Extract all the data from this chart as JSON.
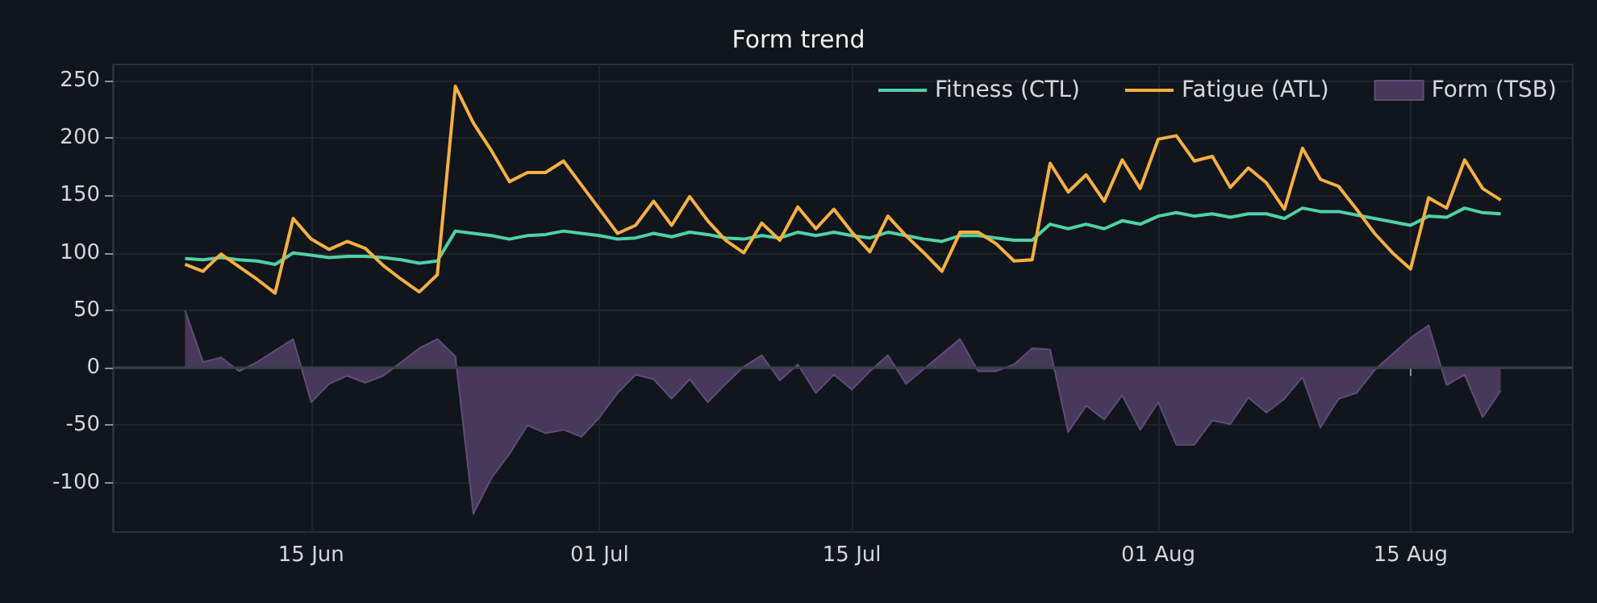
{
  "chart_data": {
    "type": "line",
    "title": "Form trend",
    "x": [
      "--06-08",
      "--06-09",
      "--06-10",
      "--06-11",
      "--06-12",
      "--06-13",
      "--06-14",
      "--06-15",
      "--06-16",
      "--06-17",
      "--06-18",
      "--06-19",
      "--06-20",
      "--06-21",
      "--06-22",
      "--06-23",
      "--06-24",
      "--06-25",
      "--06-26",
      "--06-27",
      "--06-28",
      "--06-29",
      "--06-30",
      "--07-01",
      "--07-02",
      "--07-03",
      "--07-04",
      "--07-05",
      "--07-06",
      "--07-07",
      "--07-08",
      "--07-09",
      "--07-10",
      "--07-11",
      "--07-12",
      "--07-13",
      "--07-14",
      "--07-15",
      "--07-16",
      "--07-17",
      "--07-18",
      "--07-19",
      "--07-20",
      "--07-21",
      "--07-22",
      "--07-23",
      "--07-24",
      "--07-25",
      "--07-26",
      "--07-27",
      "--07-28",
      "--07-29",
      "--07-30",
      "--07-31",
      "--08-01",
      "--08-02",
      "--08-03",
      "--08-04",
      "--08-05",
      "--08-06",
      "--08-07",
      "--08-08",
      "--08-09",
      "--08-10",
      "--08-11",
      "--08-12",
      "--08-13",
      "--08-14",
      "--08-15",
      "--08-16",
      "--08-17",
      "--08-18",
      "--08-19",
      "--08-20"
    ],
    "series": [
      {
        "name": "Fitness (CTL)",
        "color": "#4fd1a5",
        "values": [
          95,
          94,
          96,
          94,
          93,
          90,
          100,
          98,
          96,
          97,
          97,
          96,
          94,
          91,
          93,
          119,
          117,
          115,
          112,
          115,
          116,
          119,
          117,
          115,
          112,
          113,
          117,
          114,
          118,
          116,
          113,
          112,
          115,
          113,
          118,
          115,
          118,
          115,
          113,
          118,
          115,
          112,
          110,
          115,
          115,
          113,
          111,
          111,
          125,
          121,
          125,
          121,
          128,
          125,
          132,
          135,
          132,
          134,
          131,
          134,
          134,
          130,
          139,
          136,
          136,
          133,
          130,
          127,
          124,
          132,
          131,
          139,
          135,
          134
        ]
      },
      {
        "name": "Fatigue (ATL)",
        "color": "#f5b041",
        "values": [
          90,
          84,
          99,
          88,
          77,
          65,
          130,
          112,
          103,
          110,
          104,
          89,
          77,
          66,
          81,
          245,
          213,
          189,
          162,
          170,
          170,
          180,
          159,
          138,
          117,
          124,
          145,
          124,
          149,
          128,
          111,
          100,
          126,
          111,
          140,
          121,
          138,
          118,
          101,
          132,
          115,
          100,
          84,
          118,
          118,
          108,
          93,
          94,
          178,
          153,
          168,
          145,
          181,
          156,
          199,
          202,
          180,
          184,
          157,
          174,
          161,
          138,
          191,
          164,
          158,
          138,
          117,
          100,
          86,
          148,
          139,
          181,
          156,
          146
        ]
      },
      {
        "name": "Form (TSB)",
        "type": "area",
        "color": "#46395a",
        "values": [
          50,
          5,
          9,
          -3,
          5,
          15,
          25,
          -30,
          -14,
          -7,
          -13,
          -7,
          5,
          17,
          25,
          10,
          -127,
          -96,
          -75,
          -50,
          -57,
          -54,
          -60,
          -43,
          -22,
          -6,
          -10,
          -27,
          -10,
          -30,
          -14,
          1,
          11,
          -11,
          3,
          -22,
          -6,
          -19,
          -3,
          11,
          -14,
          -1,
          12,
          25,
          -3,
          -3,
          3,
          17,
          16,
          -56,
          -33,
          -45,
          -24,
          -54,
          -30,
          -67,
          -67,
          -46,
          -49,
          -26,
          -39,
          -27,
          -8,
          -52,
          -27,
          -22,
          -2,
          12,
          26,
          37,
          -15,
          -6,
          -43,
          -20
        ]
      }
    ],
    "xlim": [
      "--06-04",
      "--08-24"
    ],
    "xticks": [
      {
        "value": "--06-15",
        "label": "15 Jun"
      },
      {
        "value": "--07-01",
        "label": "01 Jul"
      },
      {
        "value": "--07-15",
        "label": "15 Jul"
      },
      {
        "value": "--08-01",
        "label": "01 Aug"
      },
      {
        "value": "--08-15",
        "label": "15 Aug"
      }
    ],
    "ylim": [
      -143,
      264
    ],
    "yticks": [
      -100,
      -50,
      0,
      50,
      100,
      150,
      200,
      250
    ],
    "ref_lines": [
      {
        "axis": "y",
        "value": 0,
        "color": "#3a3f4b"
      }
    ],
    "grid": true,
    "legend": "top right",
    "marker": "none",
    "line_style": "solid"
  }
}
